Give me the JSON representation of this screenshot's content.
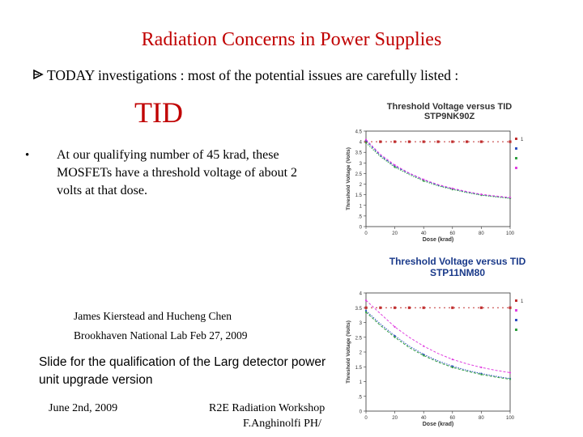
{
  "slide": {
    "title": "Radiation Concerns in Power Supplies",
    "subtitle": "TODAY investigations : most of the potential issues are carefully listed :",
    "section_heading": "TID",
    "bullet": "At our qualifying number of 45 krad, these MOSFETs have a threshold voltage of about 2 volts at that dose.",
    "credit_line1": "James Kierstead and Hucheng Chen",
    "credit_line2": "Brookhaven National Lab Feb 27, 2009",
    "slide_note": "Slide for the qualification of  the Larg detector power unit  upgrade version",
    "footer_date": "June 2nd, 2009",
    "footer_workshop": "R2E Radiation Workshop",
    "footer_author": "F.Anghinolfi PH/"
  },
  "colors": {
    "accent_red": "#c00000",
    "series_red": "#c03030",
    "series_blue": "#3050c0",
    "series_green": "#30a040",
    "series_magenta": "#e040e0",
    "series_purple": "#6040a0"
  },
  "chart_data": [
    {
      "type": "line",
      "title": "Threshold Voltage versus TID STP9NK90Z",
      "xlabel": "Dose (krad)",
      "ylabel": "Threshold Voltage (Volts)",
      "xlim": [
        0,
        100
      ],
      "ylim": [
        0,
        4.5
      ],
      "x_ticks": [
        "0",
        "20",
        "40",
        "60",
        "80",
        "100"
      ],
      "y_ticks": [
        "0",
        ".5",
        "1",
        "1.5",
        "2",
        "2.5",
        "3",
        "3.5",
        "4",
        "4.5"
      ],
      "legend_position": "right",
      "series": [
        {
          "name": "1",
          "color": "#c03030",
          "marker": "square",
          "x": [
            0,
            10,
            20,
            30,
            40,
            50,
            60,
            70,
            80,
            100
          ],
          "y": [
            4.0,
            4.0,
            4.0,
            4.0,
            4.0,
            4.0,
            4.0,
            4.0,
            4.0,
            4.0
          ]
        },
        {
          "name": "",
          "color": "#3050c0",
          "x": [
            0,
            10,
            20,
            30,
            40,
            50,
            60,
            70,
            80,
            90,
            100
          ],
          "y": [
            4.05,
            3.35,
            2.85,
            2.5,
            2.2,
            1.95,
            1.78,
            1.63,
            1.5,
            1.42,
            1.35
          ]
        },
        {
          "name": "",
          "color": "#30a040",
          "x": [
            0,
            10,
            20,
            30,
            40,
            50,
            60,
            70,
            80,
            90,
            100
          ],
          "y": [
            3.95,
            3.3,
            2.8,
            2.45,
            2.15,
            1.92,
            1.75,
            1.6,
            1.48,
            1.4,
            1.33
          ]
        },
        {
          "name": "",
          "color": "#e040e0",
          "x": [
            0,
            10,
            20,
            30,
            40,
            50,
            60,
            70,
            80,
            90,
            100
          ],
          "y": [
            4.1,
            3.4,
            2.9,
            2.52,
            2.22,
            1.98,
            1.8,
            1.65,
            1.52,
            1.44,
            1.37
          ]
        }
      ]
    },
    {
      "type": "line",
      "title": "Threshold Voltage versus TID STP11NM80",
      "xlabel": "Dose (krad)",
      "ylabel": "Threshold Voltage (Volts)",
      "xlim": [
        0,
        100
      ],
      "ylim": [
        0,
        4.0
      ],
      "x_ticks": [
        "0",
        "20",
        "40",
        "60",
        "80",
        "100"
      ],
      "y_ticks": [
        "0",
        ".5",
        "1",
        "1.5",
        "2",
        "2.5",
        "3",
        "3.5",
        "4"
      ],
      "legend_position": "right",
      "series": [
        {
          "name": "1",
          "color": "#c03030",
          "marker": "square",
          "x": [
            0,
            10,
            20,
            30,
            40,
            60,
            80,
            100
          ],
          "y": [
            3.5,
            3.5,
            3.5,
            3.5,
            3.5,
            3.5,
            3.5,
            3.5
          ]
        },
        {
          "name": "",
          "color": "#e040e0",
          "x": [
            0,
            10,
            20,
            30,
            40,
            50,
            60,
            70,
            80,
            90,
            100
          ],
          "y": [
            3.75,
            3.3,
            2.85,
            2.5,
            2.2,
            1.95,
            1.75,
            1.6,
            1.48,
            1.38,
            1.3
          ]
        },
        {
          "name": "",
          "color": "#3050c0",
          "x": [
            0,
            10,
            20,
            30,
            40,
            50,
            60,
            70,
            80,
            90,
            100
          ],
          "y": [
            3.4,
            2.95,
            2.55,
            2.2,
            1.92,
            1.7,
            1.52,
            1.38,
            1.27,
            1.18,
            1.1
          ]
        },
        {
          "name": "",
          "color": "#30a040",
          "x": [
            0,
            10,
            20,
            30,
            40,
            50,
            60,
            70,
            80,
            90,
            100
          ],
          "y": [
            3.35,
            2.9,
            2.5,
            2.15,
            1.88,
            1.66,
            1.48,
            1.35,
            1.24,
            1.15,
            1.08
          ]
        }
      ]
    }
  ]
}
